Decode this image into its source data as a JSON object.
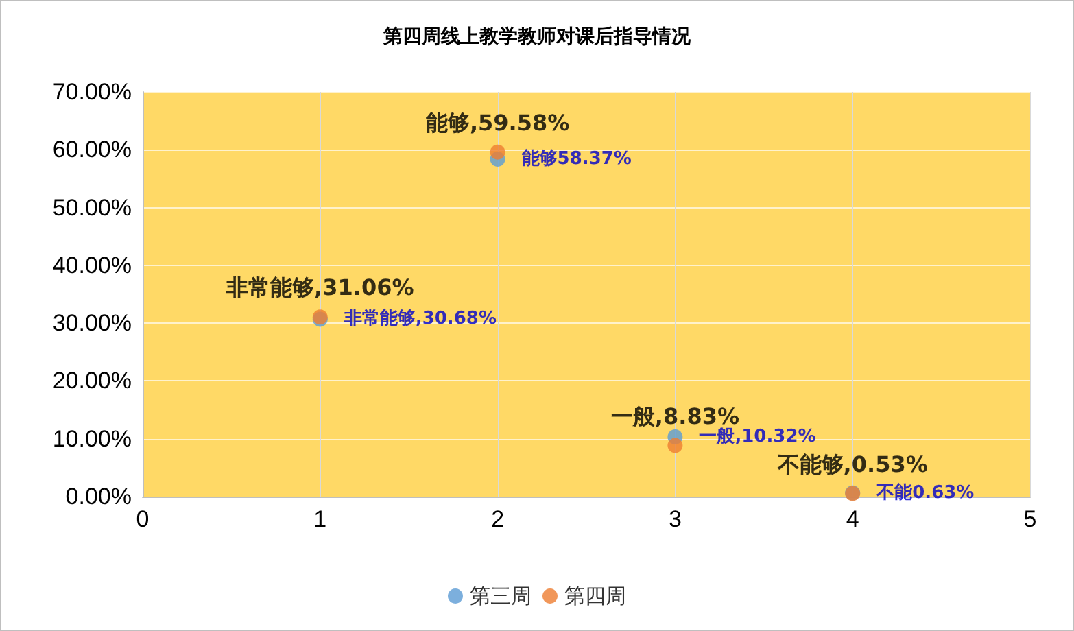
{
  "chart_data": {
    "type": "scatter",
    "title": "第四周线上教学教师对课后指导情况",
    "x": [
      1,
      2,
      3,
      4
    ],
    "series": [
      {
        "name": "第三周",
        "color": "#5b9bd5",
        "values": [
          30.68,
          58.37,
          10.32,
          0.63
        ],
        "value_labels": [
          "非常能够,30.68%",
          "能够58.37%",
          "一般,10.32%",
          "不能0.63%"
        ]
      },
      {
        "name": "第四周",
        "color": "#ed7d31",
        "values": [
          31.06,
          59.58,
          8.83,
          0.53
        ],
        "value_labels": [
          "非常能够,31.06%",
          "能够,59.58%",
          "一般,8.83%",
          "不能够,0.53%"
        ]
      }
    ],
    "xlim": [
      0,
      5
    ],
    "xticks": [
      0,
      1,
      2,
      3,
      4,
      5
    ],
    "ylim": [
      0,
      70
    ],
    "yticks": [
      {
        "value": 0,
        "label": "0.00%"
      },
      {
        "value": 10,
        "label": "10.00%"
      },
      {
        "value": 20,
        "label": "20.00%"
      },
      {
        "value": 30,
        "label": "30.00%"
      },
      {
        "value": 40,
        "label": "40.00%"
      },
      {
        "value": 50,
        "label": "50.00%"
      },
      {
        "value": 60,
        "label": "60.00%"
      },
      {
        "value": 70,
        "label": "70.00%"
      }
    ],
    "grid": true,
    "legend": "bottom",
    "marker": "circle"
  }
}
